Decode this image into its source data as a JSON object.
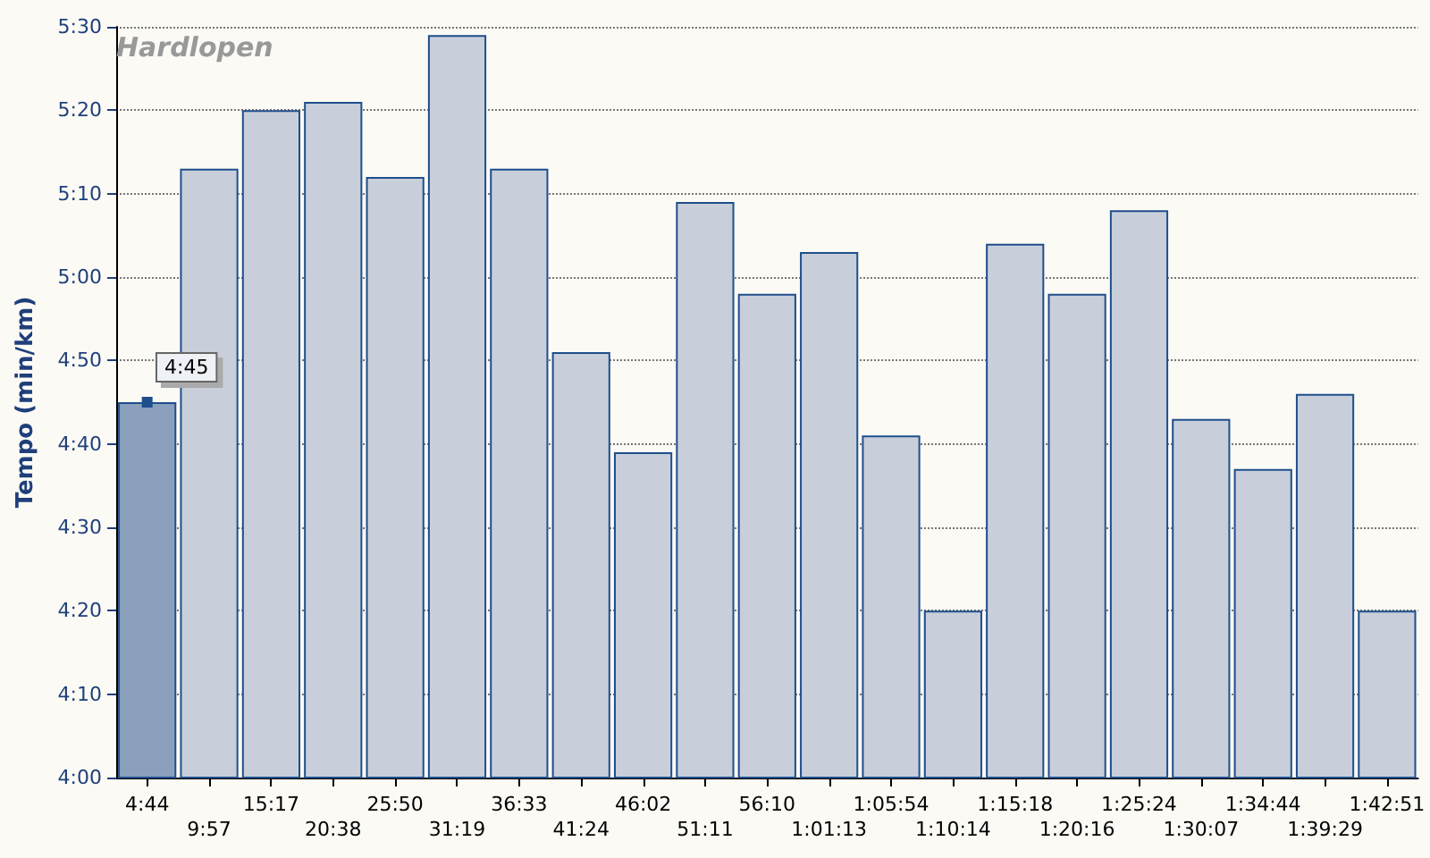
{
  "chart_data": {
    "type": "bar",
    "title": "Hardlopen",
    "ylabel": "Tempo (min/km)",
    "categories": [
      "4:44",
      "9:57",
      "15:17",
      "20:38",
      "25:50",
      "31:19",
      "36:33",
      "41:24",
      "46:02",
      "51:11",
      "56:10",
      "1:01:13",
      "1:05:54",
      "1:10:14",
      "1:15:18",
      "1:20:16",
      "1:25:24",
      "1:30:07",
      "1:34:44",
      "1:39:29",
      "1:42:51"
    ],
    "values": [
      285,
      313,
      320,
      321,
      312,
      329,
      313,
      291,
      279,
      309,
      298,
      303,
      281,
      260,
      304,
      298,
      308,
      283,
      277,
      286,
      260
    ],
    "colors": [
      "#8aa0bc",
      "#c8cfdb",
      "#c8cfdb",
      "#c8cfdb",
      "#c8cfdb",
      "#c8cfdb",
      "#c8cfdb",
      "#c8cfdb",
      "#c8cfdb",
      "#c8cfdb",
      "#c8cfdb",
      "#c8cfdb",
      "#c8cfdb",
      "#c8cfdb",
      "#c8cfdb",
      "#c8cfdb",
      "#c8cfdb",
      "#c8cfdb",
      "#c8cfdb",
      "#c8cfdb",
      "#c8cfdb"
    ],
    "ylim": [
      240,
      330
    ],
    "yticks": [
      {
        "value": 240,
        "label": "4:00"
      },
      {
        "value": 250,
        "label": "4:10"
      },
      {
        "value": 260,
        "label": "4:20"
      },
      {
        "value": 270,
        "label": "4:30"
      },
      {
        "value": 280,
        "label": "4:40"
      },
      {
        "value": 290,
        "label": "4:50"
      },
      {
        "value": 300,
        "label": "5:00"
      },
      {
        "value": 310,
        "label": "5:10"
      },
      {
        "value": 320,
        "label": "5:20"
      },
      {
        "value": 330,
        "label": "5:30"
      }
    ],
    "grid": "y",
    "annotations": [
      {
        "text": "4:45",
        "x": "4:44",
        "y": 285
      }
    ]
  }
}
